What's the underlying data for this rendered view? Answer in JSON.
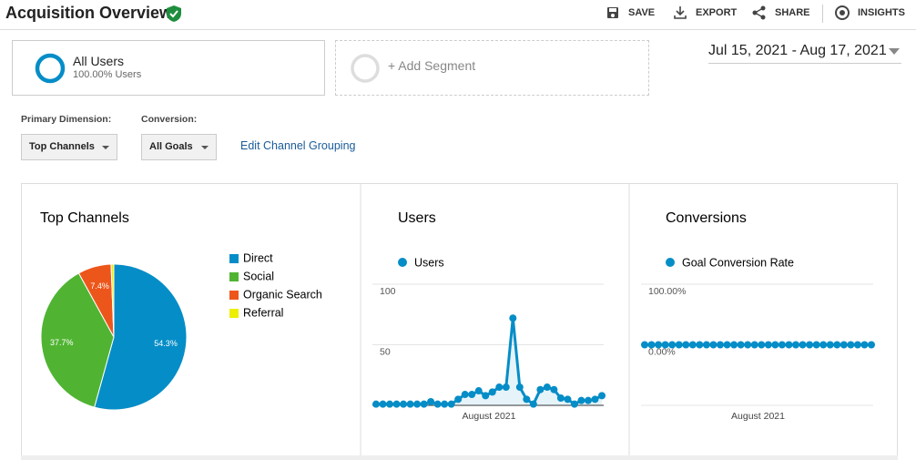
{
  "header": {
    "title": "Acquisition Overview",
    "actions": [
      "SAVE",
      "EXPORT",
      "SHARE",
      "INSIGHTS"
    ]
  },
  "segments": {
    "active": {
      "name": "All Users",
      "detail": "100.00% Users"
    },
    "add": "+ Add Segment"
  },
  "date_range": "Jul 15, 2021 - Aug 17, 2021",
  "controls": {
    "primary_dimension": {
      "label": "Primary Dimension:",
      "value": "Top Channels"
    },
    "conversion": {
      "label": "Conversion:",
      "value": "All Goals"
    },
    "link": "Edit Channel Grouping"
  },
  "chart_data": [
    {
      "type": "pie",
      "title": "Top Channels",
      "categories": [
        "Direct",
        "Social",
        "Organic Search",
        "Referral"
      ],
      "values": [
        54.3,
        37.7,
        7.4,
        0.6
      ],
      "value_labels": [
        "54.3%",
        "37.7%",
        "7.4%",
        null
      ],
      "colors": [
        "#058dc7",
        "#50b432",
        "#ed561b",
        "#edef00"
      ]
    },
    {
      "type": "line",
      "title": "Users",
      "x_label": "August 2021",
      "series": [
        {
          "name": "Users",
          "color": "#058dc7",
          "values": [
            1,
            1,
            1,
            1,
            1,
            1,
            1,
            1,
            3,
            1,
            1,
            1,
            5,
            9,
            9,
            12,
            8,
            11,
            15,
            15,
            72,
            15,
            5,
            1,
            13,
            15,
            13,
            6,
            5,
            1,
            4,
            4,
            5,
            8
          ]
        }
      ],
      "ylim": [
        0,
        100
      ],
      "yticks": [
        50,
        100
      ],
      "grid": true
    },
    {
      "type": "line",
      "title": "Conversions",
      "x_label": "August 2021",
      "series": [
        {
          "name": "Goal Conversion Rate",
          "color": "#058dc7",
          "values": [
            0,
            0,
            0,
            0,
            0,
            0,
            0,
            0,
            0,
            0,
            0,
            0,
            0,
            0,
            0,
            0,
            0,
            0,
            0,
            0,
            0,
            0,
            0,
            0,
            0,
            0,
            0,
            0,
            0,
            0,
            0,
            0,
            0,
            0
          ]
        }
      ],
      "ylim": [
        -100,
        100
      ],
      "yticks": [
        {
          "value": 0,
          "label": "0.00%"
        },
        {
          "value": 100,
          "label": "100.00%"
        }
      ],
      "grid": true
    }
  ]
}
